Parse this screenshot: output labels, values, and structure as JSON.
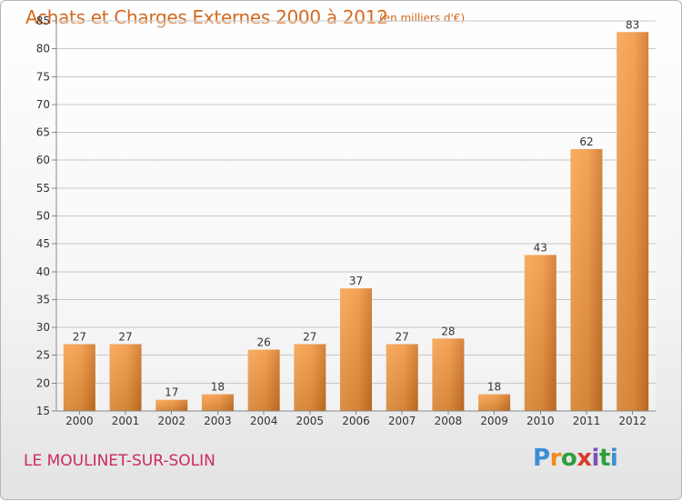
{
  "header": {
    "title": "Achats et Charges Externes 2000 à 2012",
    "subtitle": "(en milliers d'€)"
  },
  "footer": {
    "commune": "LE MOULINET-SUR-SOLIN",
    "brand_letters": [
      "P",
      "r",
      "o",
      "x",
      "i",
      "t",
      "i"
    ],
    "brand_colors": [
      "#3a8fd6",
      "#f08a1c",
      "#2f9e3c",
      "#d43d2a",
      "#7a52b8",
      "#2f9e3c",
      "#3a8fd6"
    ]
  },
  "chart_data": {
    "type": "bar",
    "categories": [
      "2000",
      "2001",
      "2002",
      "2003",
      "2004",
      "2005",
      "2006",
      "2007",
      "2008",
      "2009",
      "2010",
      "2011",
      "2012"
    ],
    "values": [
      27,
      27,
      17,
      18,
      26,
      27,
      37,
      27,
      28,
      18,
      43,
      62,
      83
    ],
    "title": "Achats et Charges Externes 2000 à 2012",
    "subtitle": "(en milliers d'€)",
    "ylim": [
      15,
      85
    ],
    "yticks": [
      15,
      20,
      25,
      30,
      35,
      40,
      45,
      50,
      55,
      60,
      65,
      70,
      75,
      80,
      85
    ],
    "grid": true,
    "bar_color_light": "#f7a24e",
    "bar_color_dark": "#c86a1e"
  }
}
